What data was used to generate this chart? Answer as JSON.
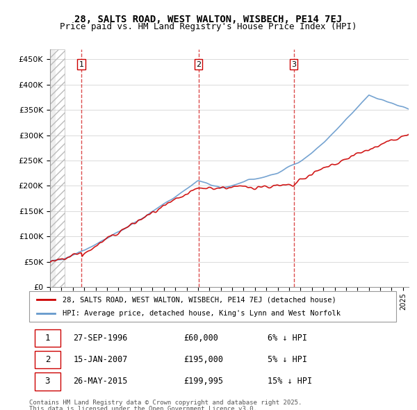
{
  "title_line1": "28, SALTS ROAD, WEST WALTON, WISBECH, PE14 7EJ",
  "title_line2": "Price paid vs. HM Land Registry's House Price Index (HPI)",
  "legend_red": "28, SALTS ROAD, WEST WALTON, WISBECH, PE14 7EJ (detached house)",
  "legend_blue": "HPI: Average price, detached house, King's Lynn and West Norfolk",
  "footer_line1": "Contains HM Land Registry data © Crown copyright and database right 2025.",
  "footer_line2": "This data is licensed under the Open Government Licence v3.0.",
  "transactions": [
    {
      "label": "1",
      "date": "27-SEP-1996",
      "price": "£60,000",
      "note": "6% ↓ HPI",
      "year": 1996.75
    },
    {
      "label": "2",
      "date": "15-JAN-2007",
      "price": "£195,000",
      "note": "5% ↓ HPI",
      "year": 2007.04
    },
    {
      "label": "3",
      "date": "26-MAY-2015",
      "price": "£199,995",
      "note": "15% ↓ HPI",
      "year": 2015.4
    }
  ],
  "transaction_values": [
    60000,
    195000,
    199995
  ],
  "red_color": "#cc0000",
  "blue_color": "#6699cc",
  "dashed_color": "#cc0000",
  "background_color": "#ffffff",
  "plot_bg_color": "#ffffff",
  "grid_color": "#cccccc",
  "hatch_color": "#dddddd",
  "ylim": [
    0,
    470000
  ],
  "xlim_start": 1994.0,
  "xlim_end": 2025.5
}
